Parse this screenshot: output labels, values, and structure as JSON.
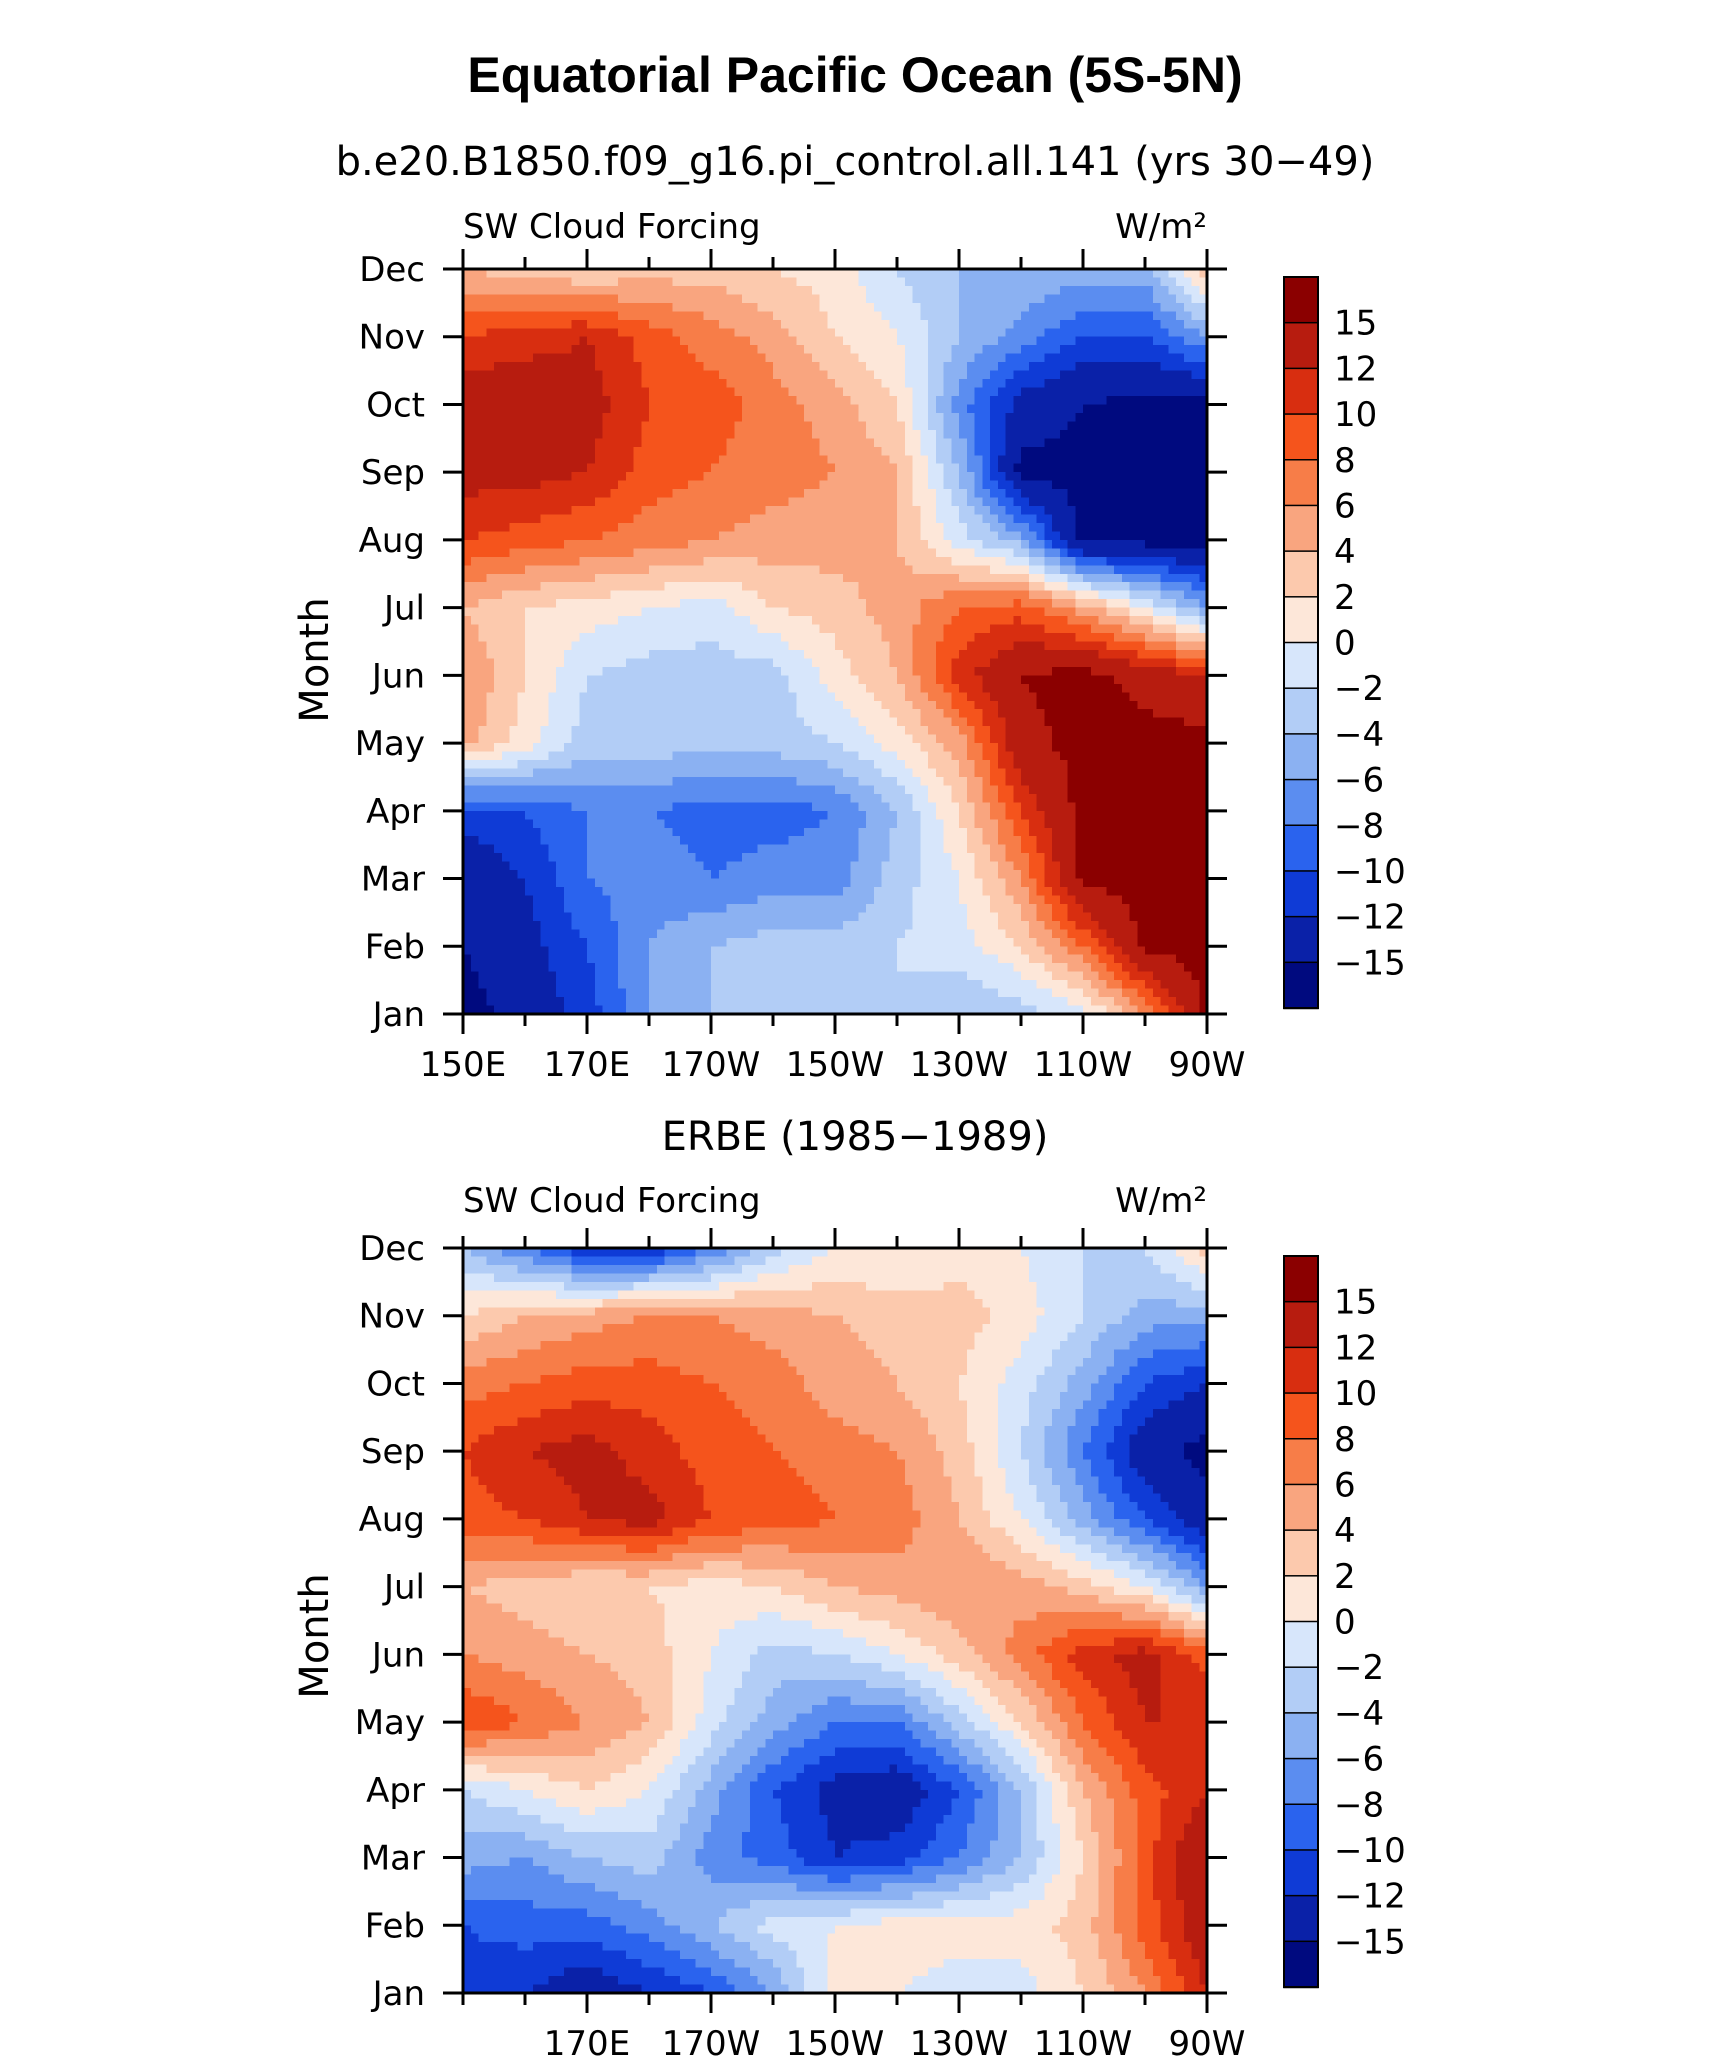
{
  "page": {
    "title": "Equatorial Pacific Ocean (5S-5N)"
  },
  "colorbar": {
    "tick_labels": [
      "15",
      "12",
      "10",
      "8",
      "6",
      "4",
      "2",
      "0",
      "−2",
      "−4",
      "−6",
      "−8",
      "−10",
      "−12",
      "−15"
    ],
    "colors_top_to_bottom": [
      "#8b0000",
      "#b71c0f",
      "#d82e10",
      "#f5541c",
      "#f77d48",
      "#f9a57f",
      "#fcc9ad",
      "#fde7d9",
      "#d7e6fb",
      "#b2cdf6",
      "#8bb1f2",
      "#5b8df0",
      "#2a63ee",
      "#0f3bd6",
      "#0a21a8",
      "#000a7f"
    ]
  },
  "chart_data": [
    {
      "type": "heatmap",
      "title": "b.e20.B1850.f09_g16.pi_control.all.141 (yrs 30−49)",
      "left_label": "SW Cloud Forcing",
      "right_label": "W/m²",
      "ylabel": "Month",
      "x_tick_labels": [
        "150E",
        "170E",
        "170W",
        "150W",
        "130W",
        "110W",
        "90W"
      ],
      "x_tick_values": [
        150,
        170,
        190,
        210,
        230,
        250,
        270
      ],
      "y_tick_labels": [
        "Jan",
        "Feb",
        "Mar",
        "Apr",
        "May",
        "Jun",
        "Jul",
        "Aug",
        "Sep",
        "Oct",
        "Nov",
        "Dec"
      ],
      "xlim": [
        150,
        270
      ],
      "ylim": [
        1,
        12
      ],
      "x": [
        150,
        160,
        170,
        180,
        190,
        200,
        210,
        220,
        230,
        240,
        250,
        260,
        270
      ],
      "z": [
        [
          -16,
          -14,
          -11,
          -6,
          -4,
          -2,
          -2,
          -2,
          -4,
          -3,
          -1,
          6,
          16
        ],
        [
          -15,
          -13,
          -10,
          -6,
          -4,
          -3,
          -3,
          -2,
          -1,
          2,
          8,
          16,
          16
        ],
        [
          -14,
          -12,
          -8,
          -7,
          -8,
          -7,
          -7,
          -3,
          0,
          6,
          16,
          16,
          16
        ],
        [
          -11,
          -10,
          -8,
          -8,
          -9,
          -9,
          -8,
          -4,
          2,
          10,
          16,
          16,
          16
        ],
        [
          5,
          1,
          -3,
          -3,
          -3,
          -3,
          -2,
          1,
          5,
          14,
          16,
          16,
          16
        ],
        [
          6,
          2,
          -2,
          -3,
          -3,
          -3,
          1,
          4,
          11,
          15,
          16,
          14,
          12
        ],
        [
          4,
          2,
          1,
          0,
          -1,
          2,
          3,
          5,
          8,
          9,
          5,
          0,
          -6
        ],
        [
          10,
          9,
          8,
          7,
          6,
          5,
          5,
          4,
          -1,
          -5,
          -16,
          -16,
          -16
        ],
        [
          13,
          13,
          12,
          9,
          8,
          7,
          6,
          4,
          -4,
          -16,
          -16,
          -16,
          -16
        ],
        [
          14,
          14,
          13,
          10,
          9,
          7,
          5,
          2,
          -7,
          -13,
          -15,
          -16,
          -16
        ],
        [
          10,
          11,
          12,
          9,
          7,
          5,
          2,
          0,
          -4,
          -7,
          -10,
          -10,
          -6
        ],
        [
          4,
          3,
          2,
          3,
          3,
          2,
          1,
          -2,
          -4,
          -4,
          -5,
          -5,
          4
        ]
      ]
    },
    {
      "type": "heatmap",
      "title": "ERBE (1985−1989)",
      "left_label": "SW Cloud Forcing",
      "right_label": "W/m²",
      "ylabel": "Month",
      "x_tick_labels": [
        "170E",
        "170W",
        "150W",
        "130W",
        "110W",
        "90W"
      ],
      "x_tick_values": [
        170,
        190,
        210,
        230,
        250,
        270
      ],
      "y_tick_labels": [
        "Jan",
        "Feb",
        "Mar",
        "Apr",
        "May",
        "Jun",
        "Jul",
        "Aug",
        "Sep",
        "Oct",
        "Nov",
        "Dec"
      ],
      "xlim": [
        150,
        270
      ],
      "ylim": [
        1,
        12
      ],
      "x": [
        150,
        160,
        170,
        180,
        190,
        200,
        210,
        220,
        230,
        240,
        250,
        260,
        270
      ],
      "z": [
        [
          -11,
          -12,
          -14,
          -12,
          -10,
          -6,
          1,
          0,
          -1,
          -1,
          2,
          6,
          12
        ],
        [
          -10,
          -9,
          -9,
          -7,
          -4,
          -1,
          0,
          1,
          1,
          1,
          3,
          9,
          14
        ],
        [
          -5,
          -6,
          -4,
          -3,
          -7,
          -9,
          -12,
          -11,
          -8,
          -4,
          2,
          9,
          15
        ],
        [
          -2,
          0,
          2,
          0,
          -5,
          -10,
          -13,
          -14,
          -10,
          -4,
          4,
          9,
          12
        ],
        [
          10,
          8,
          6,
          4,
          -1,
          -5,
          -8,
          -8,
          -3,
          2,
          8,
          12,
          12
        ],
        [
          6,
          5,
          4,
          3,
          0,
          -3,
          -2,
          0,
          3,
          7,
          11,
          13,
          9
        ],
        [
          4,
          3,
          2,
          2,
          1,
          2,
          4,
          5,
          6,
          5,
          3,
          0,
          -6
        ],
        [
          9,
          10,
          12,
          13,
          10,
          9,
          8,
          7,
          4,
          0,
          -5,
          -10,
          -14
        ],
        [
          10,
          12,
          13,
          11,
          9,
          8,
          7,
          6,
          3,
          -2,
          -8,
          -14,
          -16
        ],
        [
          7,
          8,
          9,
          9,
          8,
          7,
          5,
          4,
          2,
          -1,
          -5,
          -10,
          -12
        ],
        [
          2,
          4,
          5,
          6,
          6,
          5,
          4,
          3,
          3,
          1,
          -2,
          -5,
          -5
        ],
        [
          -4,
          -8,
          -12,
          -12,
          -8,
          -3,
          0,
          0,
          1,
          0,
          -2,
          -2,
          3
        ]
      ]
    }
  ]
}
